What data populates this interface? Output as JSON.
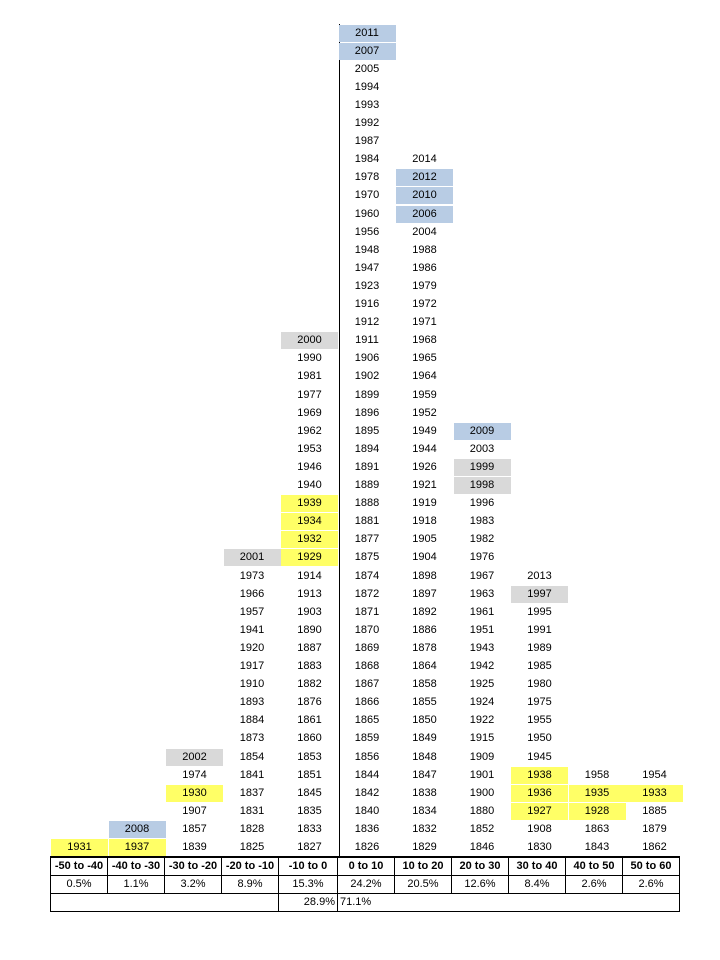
{
  "chart_data": {
    "type": "table",
    "bins": [
      {
        "range": "-50 to -40",
        "pct": "0.5%",
        "years": [
          "1931"
        ],
        "highlights": {
          "1931": "yellow"
        }
      },
      {
        "range": "-40 to -30",
        "pct": "1.1%",
        "years": [
          "1937",
          "2008"
        ],
        "highlights": {
          "1937": "yellow",
          "2008": "blue"
        }
      },
      {
        "range": "-30 to -20",
        "pct": "3.2%",
        "years": [
          "1839",
          "1857",
          "1907",
          "1930",
          "1974",
          "2002"
        ],
        "highlights": {
          "1930": "yellow",
          "2002": "gray"
        }
      },
      {
        "range": "-20 to -10",
        "pct": "8.9%",
        "years": [
          "1825",
          "1828",
          "1831",
          "1837",
          "1841",
          "1854",
          "1873",
          "1884",
          "1893",
          "1910",
          "1917",
          "1920",
          "1941",
          "1957",
          "1966",
          "1973",
          "2001"
        ],
        "highlights": {
          "2001": "gray"
        }
      },
      {
        "range": "-10 to 0",
        "pct": "15.3%",
        "years": [
          "1827",
          "1833",
          "1835",
          "1845",
          "1851",
          "1853",
          "1860",
          "1861",
          "1876",
          "1882",
          "1883",
          "1887",
          "1890",
          "1903",
          "1913",
          "1914",
          "1929",
          "1932",
          "1934",
          "1939",
          "1940",
          "1946",
          "1953",
          "1962",
          "1969",
          "1977",
          "1981",
          "1990",
          "2000"
        ],
        "highlights": {
          "1929": "yellow",
          "1932": "yellow",
          "1934": "yellow",
          "1939": "yellow",
          "2000": "gray"
        }
      },
      {
        "range": "0 to 10",
        "pct": "24.2%",
        "years": [
          "1826",
          "1836",
          "1840",
          "1842",
          "1844",
          "1856",
          "1859",
          "1865",
          "1866",
          "1867",
          "1868",
          "1869",
          "1870",
          "1871",
          "1872",
          "1874",
          "1875",
          "1877",
          "1881",
          "1888",
          "1889",
          "1891",
          "1894",
          "1895",
          "1896",
          "1899",
          "1902",
          "1906",
          "1911",
          "1912",
          "1916",
          "1923",
          "1947",
          "1948",
          "1956",
          "1960",
          "1970",
          "1978",
          "1984",
          "1987",
          "1992",
          "1993",
          "1994",
          "2005",
          "2007",
          "2011"
        ],
        "highlights": {
          "2007": "blue",
          "2011": "blue"
        }
      },
      {
        "range": "10 to 20",
        "pct": "20.5%",
        "years": [
          "1829",
          "1832",
          "1834",
          "1838",
          "1847",
          "1848",
          "1849",
          "1850",
          "1855",
          "1858",
          "1864",
          "1878",
          "1886",
          "1892",
          "1897",
          "1898",
          "1904",
          "1905",
          "1918",
          "1919",
          "1921",
          "1926",
          "1944",
          "1949",
          "1952",
          "1959",
          "1964",
          "1965",
          "1968",
          "1971",
          "1972",
          "1979",
          "1986",
          "1988",
          "2004",
          "2006",
          "2010",
          "2012",
          "2014"
        ],
        "highlights": {
          "2006": "blue",
          "2010": "blue",
          "2012": "blue"
        }
      },
      {
        "range": "20 to 30",
        "pct": "12.6%",
        "years": [
          "1846",
          "1852",
          "1880",
          "1900",
          "1901",
          "1909",
          "1915",
          "1922",
          "1924",
          "1925",
          "1942",
          "1943",
          "1951",
          "1961",
          "1963",
          "1967",
          "1976",
          "1982",
          "1983",
          "1996",
          "1998",
          "1999",
          "2003",
          "2009"
        ],
        "highlights": {
          "1998": "gray",
          "1999": "gray",
          "2009": "blue"
        }
      },
      {
        "range": "30 to 40",
        "pct": "8.4%",
        "years": [
          "1830",
          "1908",
          "1927",
          "1936",
          "1938",
          "1945",
          "1950",
          "1955",
          "1975",
          "1980",
          "1985",
          "1989",
          "1991",
          "1995",
          "1997",
          "2013"
        ],
        "highlights": {
          "1927": "yellow",
          "1936": "yellow",
          "1938": "yellow",
          "1997": "gray"
        }
      },
      {
        "range": "40 to 50",
        "pct": "2.6%",
        "years": [
          "1843",
          "1863",
          "1928",
          "1935",
          "1958"
        ],
        "highlights": {
          "1928": "yellow",
          "1935": "yellow"
        }
      },
      {
        "range": "50 to 60",
        "pct": "2.6%",
        "years": [
          "1862",
          "1879",
          "1885",
          "1933",
          "1954"
        ],
        "highlights": {
          "1933": "yellow"
        }
      }
    ],
    "totals": {
      "negative": "28.9%",
      "positive": "71.1%"
    }
  },
  "colors": {
    "yellow": "#ffff66",
    "blue": "#b8cce4",
    "gray": "#d9d9d9",
    "text": "#000000",
    "grid": "#000000"
  }
}
